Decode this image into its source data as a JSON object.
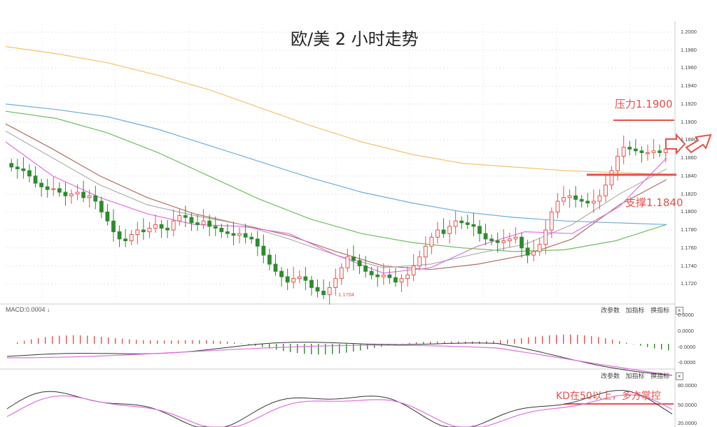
{
  "title": "欧/美 2 小时走势",
  "annotations": {
    "resistance_label": "压力1.1900",
    "support_label": "支撑1.1840",
    "low_label": "1.1704",
    "kd_note": "KD在50以上，多方掌控"
  },
  "macd_pane": {
    "header": "MACD:0.0004 ↓",
    "links": [
      "改参数",
      "加指标",
      "换指标"
    ],
    "close": "×",
    "ticks": [
      "0.0000",
      "0.0000",
      "-0.0000",
      "-0.0000"
    ]
  },
  "kd_pane": {
    "links": [
      "改参数",
      "加指标",
      "换指标"
    ],
    "close": "×",
    "ticks": [
      "80.0000",
      "50.0000",
      "20.0000"
    ]
  },
  "colors": {
    "up_candle": "#e8504a",
    "down_candle": "#2e8b2e",
    "ma_orange": "#f5c26b",
    "ma_blue": "#6aaee0",
    "ma_green": "#6cbf5c",
    "ma_brown": "#b07060",
    "ma_gray": "#b0b0b0",
    "ma_pink": "#e070e0",
    "ma_dark": "#555555",
    "annotation": "#e8504a"
  },
  "chart_data": [
    {
      "type": "candlestick",
      "title": "欧/美 2 小时走势",
      "ylim": [
        1.17,
        1.2
      ],
      "y_ticks": [
        "1.2000",
        "1.1980",
        "1.1960",
        "1.1940",
        "1.1920",
        "1.1900",
        "1.1880",
        "1.1860",
        "1.1840",
        "1.1820",
        "1.1800",
        "1.1780",
        "1.1760",
        "1.1740",
        "1.1720"
      ],
      "horizontal_levels": [
        {
          "label": "压力1.1900",
          "value": 1.19
        },
        {
          "label": "支撑1.1840",
          "value": 1.184
        }
      ],
      "low_marker": 1.1704,
      "close_path": [
        1.185,
        1.1848,
        1.1846,
        1.184,
        1.1832,
        1.1828,
        1.1825,
        1.1826,
        1.1822,
        1.1818,
        1.182,
        1.1822,
        1.1816,
        1.1818,
        1.1812,
        1.18,
        1.179,
        1.1778,
        1.177,
        1.1768,
        1.1775,
        1.178,
        1.1778,
        1.1782,
        1.1786,
        1.1782,
        1.178,
        1.179,
        1.1796,
        1.1794,
        1.1788,
        1.1786,
        1.179,
        1.1784,
        1.1782,
        1.1778,
        1.1776,
        1.1774,
        1.1776,
        1.1772,
        1.177,
        1.1762,
        1.1752,
        1.1742,
        1.1734,
        1.1728,
        1.1722,
        1.1726,
        1.1728,
        1.1724,
        1.1716,
        1.1712,
        1.1708,
        1.1716,
        1.1726,
        1.1738,
        1.175,
        1.1746,
        1.174,
        1.1734,
        1.173,
        1.1728,
        1.173,
        1.1727,
        1.1722,
        1.1726,
        1.173,
        1.174,
        1.175,
        1.1762,
        1.1772,
        1.178,
        1.1776,
        1.1784,
        1.179,
        1.1788,
        1.1786,
        1.1784,
        1.1776,
        1.177,
        1.1768,
        1.1766,
        1.1768,
        1.177,
        1.1772,
        1.176,
        1.1752,
        1.1756,
        1.1764,
        1.178,
        1.18,
        1.1812,
        1.1816,
        1.1818,
        1.1814,
        1.1812,
        1.181,
        1.1812,
        1.1818,
        1.183,
        1.1846,
        1.1862,
        1.1872,
        1.187,
        1.1868,
        1.1866,
        1.1866,
        1.1868,
        1.1866,
        1.187
      ],
      "moving_averages": [
        {
          "color_key": "ma_orange",
          "values": [
            1.1984,
            1.1976,
            1.1966,
            1.1952,
            1.1936,
            1.1916,
            1.1896,
            1.1878,
            1.1864,
            1.1854,
            1.185,
            1.1846,
            1.1844,
            1.1842
          ]
        },
        {
          "color_key": "ma_blue",
          "values": [
            1.192,
            1.1914,
            1.1906,
            1.1892,
            1.1874,
            1.1856,
            1.1838,
            1.1822,
            1.181,
            1.18,
            1.1794,
            1.179,
            1.1788,
            1.1786
          ]
        },
        {
          "color_key": "ma_green",
          "values": [
            1.1912,
            1.1904,
            1.1888,
            1.1866,
            1.184,
            1.1814,
            1.1792,
            1.1776,
            1.1766,
            1.176,
            1.1756,
            1.1758,
            1.1768,
            1.1786
          ]
        },
        {
          "color_key": "ma_brown",
          "values": [
            1.1898,
            1.187,
            1.184,
            1.1816,
            1.1798,
            1.1786,
            1.1774,
            1.1756,
            1.174,
            1.1736,
            1.1742,
            1.1752,
            1.177,
            1.1808,
            1.1836
          ]
        },
        {
          "color_key": "ma_gray",
          "values": [
            1.189,
            1.186,
            1.183,
            1.1808,
            1.1796,
            1.1786,
            1.177,
            1.1752,
            1.1738,
            1.1742,
            1.1754,
            1.1764,
            1.1786,
            1.182,
            1.1848
          ]
        },
        {
          "color_key": "ma_pink",
          "values": [
            1.1878,
            1.184,
            1.1816,
            1.1798,
            1.1786,
            1.1784,
            1.1776,
            1.1752,
            1.1732,
            1.1738,
            1.1762,
            1.1778,
            1.1776,
            1.1806,
            1.186
          ]
        }
      ]
    },
    {
      "type": "bar",
      "title": "MACD",
      "header": "MACD:0.0004 ↓",
      "description_levels": [
        "0.0000",
        "0.0000",
        "-0.0000",
        "-0.0000"
      ]
    },
    {
      "type": "line",
      "title": "KD",
      "y_ticks": [
        "80.0000",
        "50.0000",
        "20.0000"
      ]
    }
  ]
}
